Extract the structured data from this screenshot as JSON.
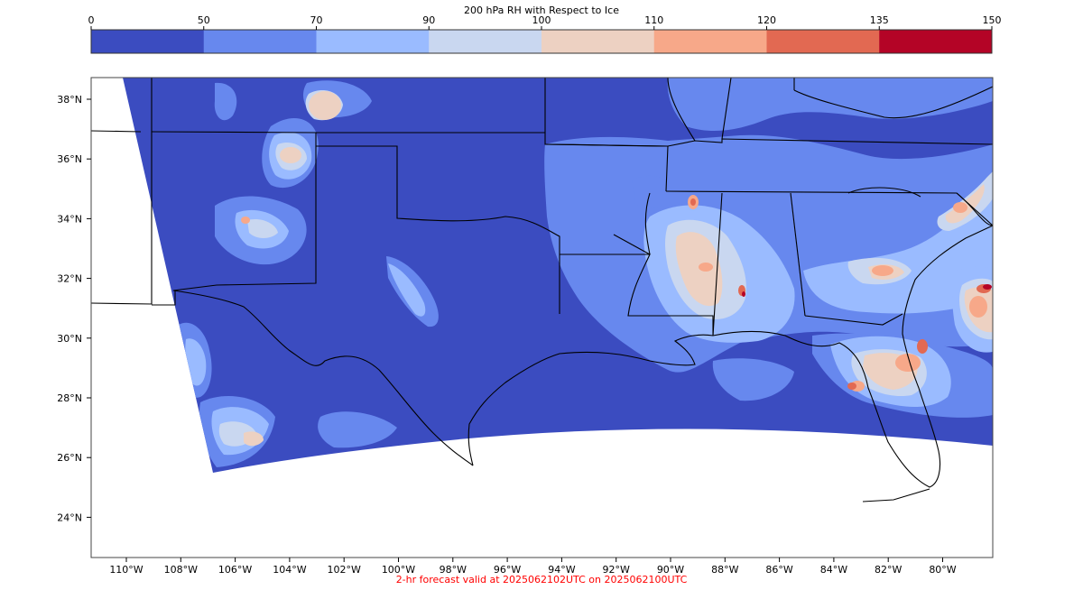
{
  "colorbar": {
    "title": "200 hPa RH with Respect to Ice",
    "ticks": [
      "0",
      "50",
      "70",
      "90",
      "100",
      "110",
      "120",
      "135",
      "150"
    ],
    "colors": [
      "#3b4cc0",
      "#6788ee",
      "#9abbff",
      "#c9d7f0",
      "#edd1c2",
      "#f7a889",
      "#e26952",
      "#b40426"
    ]
  },
  "map": {
    "region": "Southern United States / Gulf of Mexico",
    "background_field_color": "#3b4cc0",
    "lat_labels": [
      "38°N",
      "36°N",
      "34°N",
      "32°N",
      "30°N",
      "28°N",
      "26°N",
      "24°N"
    ],
    "lon_labels": [
      "110°W",
      "108°W",
      "106°W",
      "104°W",
      "102°W",
      "100°W",
      "98°W",
      "96°W",
      "94°W",
      "92°W",
      "90°W",
      "88°W",
      "86°W",
      "84°W",
      "82°W",
      "80°W"
    ],
    "boundary_color": "#000000"
  },
  "footer": {
    "text": "2-hr forecast valid at 2025062102UTC on 2025062100UTC",
    "color": "#ff0000"
  }
}
